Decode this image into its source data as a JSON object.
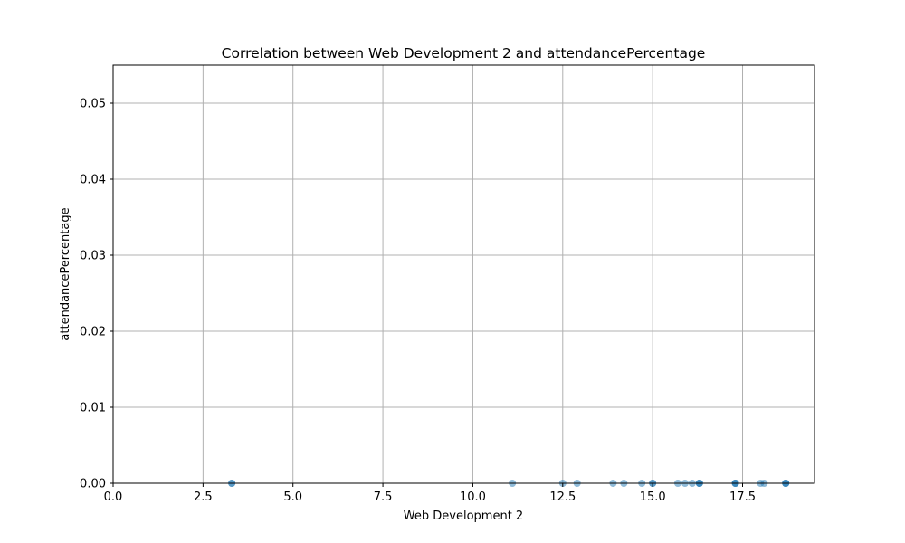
{
  "chart_data": {
    "type": "scatter",
    "title": "Correlation between Web Development 2 and attendancePercentage",
    "xlabel": "Web Development 2",
    "ylabel": "attendancePercentage",
    "xlim": [
      0,
      19.5
    ],
    "ylim": [
      0,
      0.055
    ],
    "xticks": [
      0.0,
      2.5,
      5.0,
      7.5,
      10.0,
      12.5,
      15.0,
      17.5
    ],
    "xtick_labels": [
      "0.0",
      "2.5",
      "5.0",
      "7.5",
      "10.0",
      "12.5",
      "15.0",
      "17.5"
    ],
    "yticks": [
      0.0,
      0.01,
      0.02,
      0.03,
      0.04,
      0.05
    ],
    "ytick_labels": [
      "0.00",
      "0.01",
      "0.02",
      "0.03",
      "0.04",
      "0.05"
    ],
    "grid": true,
    "marker_color": "#1f77b4",
    "marker_alpha": 0.5,
    "points": [
      {
        "x": 3.3,
        "y": 0
      },
      {
        "x": 3.3,
        "y": 0
      },
      {
        "x": 11.1,
        "y": 0
      },
      {
        "x": 12.5,
        "y": 0
      },
      {
        "x": 12.9,
        "y": 0
      },
      {
        "x": 13.9,
        "y": 0
      },
      {
        "x": 14.2,
        "y": 0
      },
      {
        "x": 14.7,
        "y": 0
      },
      {
        "x": 15.0,
        "y": 0
      },
      {
        "x": 15.0,
        "y": 0
      },
      {
        "x": 15.7,
        "y": 0
      },
      {
        "x": 15.9,
        "y": 0
      },
      {
        "x": 16.1,
        "y": 0
      },
      {
        "x": 16.3,
        "y": 0
      },
      {
        "x": 16.3,
        "y": 0
      },
      {
        "x": 16.3,
        "y": 0
      },
      {
        "x": 17.3,
        "y": 0
      },
      {
        "x": 17.3,
        "y": 0
      },
      {
        "x": 17.3,
        "y": 0
      },
      {
        "x": 18.0,
        "y": 0
      },
      {
        "x": 18.1,
        "y": 0
      },
      {
        "x": 18.7,
        "y": 0
      },
      {
        "x": 18.7,
        "y": 0
      },
      {
        "x": 18.7,
        "y": 0
      }
    ]
  }
}
